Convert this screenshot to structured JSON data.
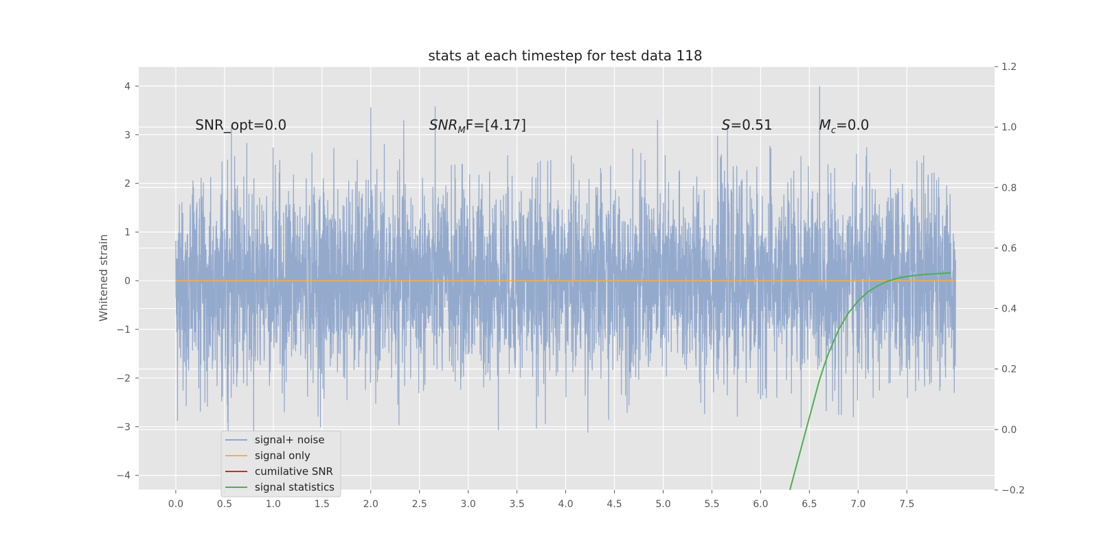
{
  "chart_data": {
    "type": "line",
    "title": "stats at each timestep for test data 118",
    "ylabel": "Whitened strain",
    "xlim": [
      -0.38,
      8.4
    ],
    "ylim": [
      -4.3,
      4.4
    ],
    "y2lim": [
      -0.2,
      1.2
    ],
    "x_ticks": [
      0.0,
      0.5,
      1.0,
      1.5,
      2.0,
      2.5,
      3.0,
      3.5,
      4.0,
      4.5,
      5.0,
      5.5,
      6.0,
      6.5,
      7.0,
      7.5
    ],
    "x_tick_labels": [
      "0.0",
      "0.5",
      "1.0",
      "1.5",
      "2.0",
      "2.5",
      "3.0",
      "3.5",
      "4.0",
      "4.5",
      "5.0",
      "5.5",
      "6.0",
      "6.5",
      "7.0",
      "7.5"
    ],
    "y_ticks": [
      -4,
      -3,
      -2,
      -1,
      0,
      1,
      2,
      3,
      4
    ],
    "y_tick_labels": [
      "−4",
      "−3",
      "−2",
      "−1",
      "0",
      "1",
      "2",
      "3",
      "4"
    ],
    "y2_ticks": [
      -0.2,
      0.0,
      0.2,
      0.4,
      0.6,
      0.8,
      1.0,
      1.2
    ],
    "y2_tick_labels": [
      "−0.2",
      "0.0",
      "0.2",
      "0.4",
      "0.6",
      "0.8",
      "1.0",
      "1.2"
    ],
    "grid": true,
    "legend_position": "lower-left",
    "annotations": [
      {
        "id": "snr-opt",
        "text": "SNR_opt=0.0",
        "x": 0.2,
        "y": 3.2
      },
      {
        "id": "snr-mf",
        "text": "SNR_M F=[4.17]",
        "main": "SNR",
        "sub": "M",
        "rest": "F=[4.17]",
        "x": 2.6,
        "y": 3.2
      },
      {
        "id": "s-stat",
        "text": "S=0.51",
        "main": "S",
        "rest": "=0.51",
        "x": 5.6,
        "y": 3.2
      },
      {
        "id": "mc-stat",
        "text": "M_c=0.0",
        "main": "M",
        "sub": "c",
        "rest": "=0.0",
        "x": 6.6,
        "y": 3.2
      }
    ],
    "series": [
      {
        "name": "signal+ noise",
        "color": "#8fa6cb",
        "axis": "left",
        "x_range": [
          0.0,
          8.0
        ],
        "std": 1.0,
        "peak_range": [
          -3.9,
          4.0
        ],
        "note_shape": "dense whitened noise"
      },
      {
        "name": "signal only",
        "color": "#f5b041",
        "axis": "left",
        "x": [
          0.0,
          8.0
        ],
        "y": [
          0.0,
          0.0
        ]
      },
      {
        "name": "cumilative SNR",
        "color": "#d62728",
        "axis": "right",
        "x": [],
        "y": []
      },
      {
        "name": "signal statistics",
        "color": "#4caf50",
        "axis": "right",
        "x": [
          6.3,
          6.35,
          6.4,
          6.45,
          6.5,
          6.55,
          6.6,
          6.65,
          6.7,
          6.8,
          6.9,
          7.0,
          7.1,
          7.2,
          7.3,
          7.4,
          7.5,
          7.6,
          7.7,
          7.8,
          7.95
        ],
        "y": [
          -0.2,
          -0.14,
          -0.08,
          -0.02,
          0.04,
          0.1,
          0.16,
          0.21,
          0.255,
          0.33,
          0.385,
          0.425,
          0.455,
          0.475,
          0.49,
          0.5,
          0.506,
          0.51,
          0.513,
          0.515,
          0.518
        ]
      }
    ]
  }
}
